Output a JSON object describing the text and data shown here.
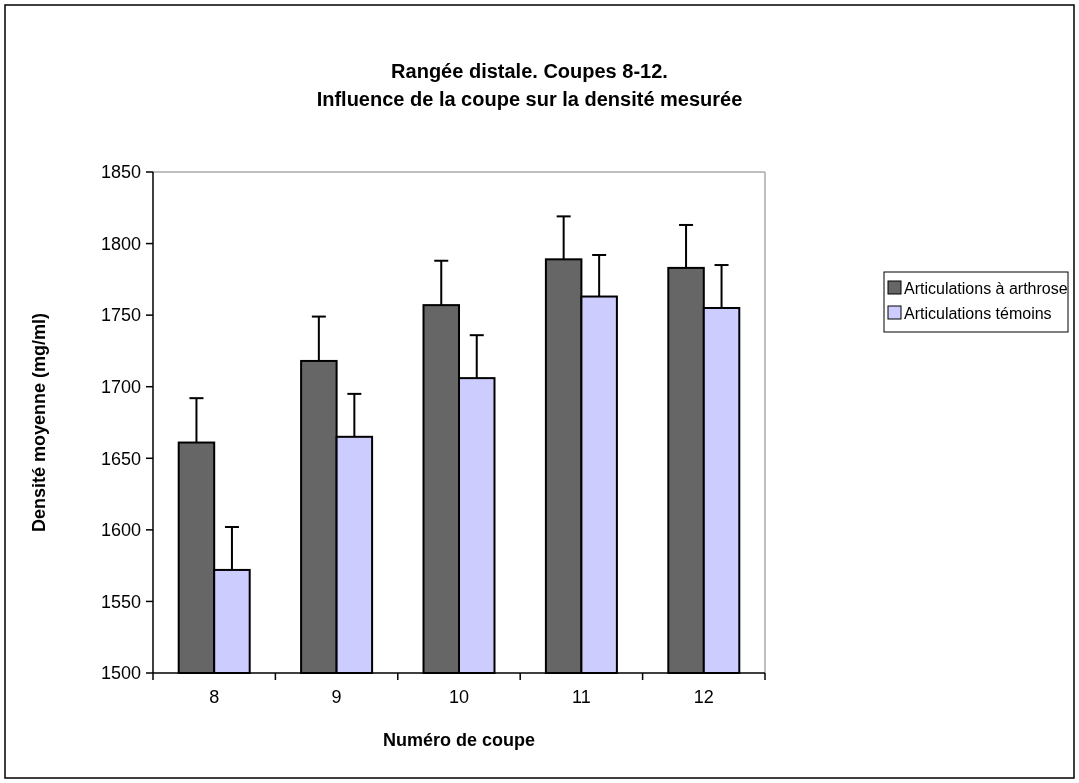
{
  "chart_data": {
    "type": "bar",
    "title": "Rangée distale. Coupes 8-12.\nInfluence de la coupe sur la densité mesurée",
    "xlabel": "Numéro de coupe",
    "ylabel": "Densité moyenne (mg/ml)",
    "categories": [
      "8",
      "9",
      "10",
      "11",
      "12"
    ],
    "series": [
      {
        "name": "Articulations à arthrose",
        "color": "#666666",
        "values": [
          1661,
          1718,
          1757,
          1789,
          1783
        ],
        "errors": [
          [
            1661,
            1692
          ],
          [
            1718,
            1749
          ],
          [
            1757,
            1788
          ],
          [
            1789,
            1819
          ],
          [
            1783,
            1813
          ]
        ]
      },
      {
        "name": "Articulations témoins",
        "color": "#ccccff",
        "values": [
          1572,
          1665,
          1706,
          1763,
          1755
        ],
        "errors": [
          [
            1572,
            1602
          ],
          [
            1665,
            1695
          ],
          [
            1706,
            1736
          ],
          [
            1763,
            1792
          ],
          [
            1755,
            1785
          ]
        ]
      }
    ],
    "ylim": [
      1500,
      1850
    ],
    "yticks": [
      1500,
      1550,
      1600,
      1650,
      1700,
      1750,
      1800,
      1850
    ],
    "grid": false,
    "legend": "right"
  }
}
